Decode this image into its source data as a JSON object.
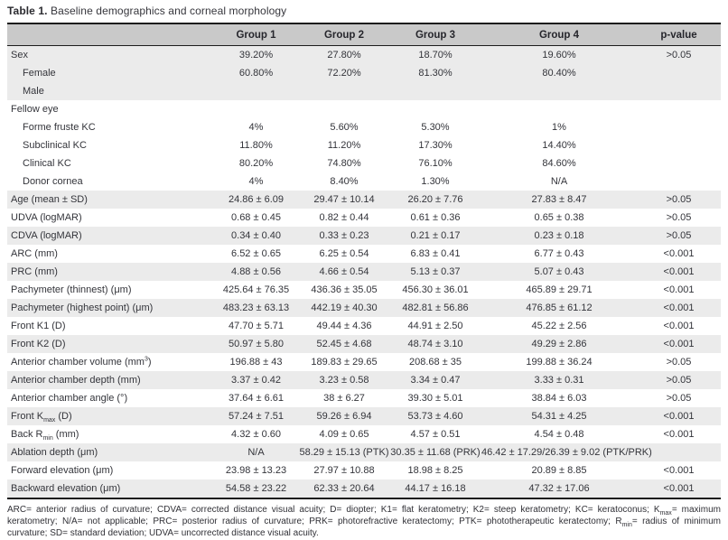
{
  "title": {
    "bold": "Table 1.",
    "rest": " Baseline demographics and corneal morphology"
  },
  "colors": {
    "header_bg": "#c9c9c9",
    "row_shade": "#ebebeb",
    "text": "#33343a",
    "border": "#1c1c1c"
  },
  "table": {
    "columns": [
      "",
      "Group 1",
      "Group 2",
      "Group 3",
      "Group 4",
      "p-value"
    ],
    "rows": [
      {
        "label_parts": [
          {
            "t": "Sex"
          }
        ],
        "indent": false,
        "shade": "gray",
        "values": [
          "39.20%",
          "27.80%",
          "18.70%",
          "19.60%",
          ">0.05"
        ]
      },
      {
        "label_parts": [
          {
            "t": "Female"
          }
        ],
        "indent": true,
        "shade": "gray",
        "values": [
          "60.80%",
          "72.20%",
          "81.30%",
          "80.40%",
          ""
        ]
      },
      {
        "label_parts": [
          {
            "t": "Male"
          }
        ],
        "indent": true,
        "shade": "gray",
        "values": [
          "",
          "",
          "",
          "",
          ""
        ]
      },
      {
        "label_parts": [
          {
            "t": "Fellow eye"
          }
        ],
        "indent": false,
        "shade": "white",
        "values": [
          "",
          "",
          "",
          "",
          ""
        ]
      },
      {
        "label_parts": [
          {
            "t": "Forme fruste KC"
          }
        ],
        "indent": true,
        "shade": "white",
        "values": [
          "4%",
          "5.60%",
          "5.30%",
          "1%",
          ""
        ]
      },
      {
        "label_parts": [
          {
            "t": "Subclinical KC"
          }
        ],
        "indent": true,
        "shade": "white",
        "values": [
          "11.80%",
          "11.20%",
          "17.30%",
          "14.40%",
          ""
        ]
      },
      {
        "label_parts": [
          {
            "t": "Clinical KC"
          }
        ],
        "indent": true,
        "shade": "white",
        "values": [
          "80.20%",
          "74.80%",
          "76.10%",
          "84.60%",
          ""
        ]
      },
      {
        "label_parts": [
          {
            "t": "Donor cornea"
          }
        ],
        "indent": true,
        "shade": "white",
        "values": [
          "4%",
          "8.40%",
          "1.30%",
          "N/A",
          ""
        ]
      },
      {
        "label_parts": [
          {
            "t": "Age (mean ± SD)"
          }
        ],
        "indent": false,
        "shade": "gray",
        "values": [
          "24.86 ± 6.09",
          "29.47 ± 10.14",
          "26.20 ± 7.76",
          "27.83 ± 8.47",
          ">0.05"
        ]
      },
      {
        "label_parts": [
          {
            "t": "UDVA (logMAR)"
          }
        ],
        "indent": false,
        "shade": "white",
        "values": [
          "0.68 ± 0.45",
          "0.82 ± 0.44",
          "0.61 ± 0.36",
          "0.65 ± 0.38",
          ">0.05"
        ]
      },
      {
        "label_parts": [
          {
            "t": "CDVA (logMAR)"
          }
        ],
        "indent": false,
        "shade": "gray",
        "values": [
          "0.34 ± 0.40",
          "0.33 ± 0.23",
          "0.21 ± 0.17",
          "0.23 ± 0.18",
          ">0.05"
        ]
      },
      {
        "label_parts": [
          {
            "t": "ARC (mm)"
          }
        ],
        "indent": false,
        "shade": "white",
        "values": [
          "6.52 ± 0.65",
          "6.25 ± 0.54",
          "6.83 ± 0.41",
          "6.77 ± 0.43",
          "<0.001"
        ]
      },
      {
        "label_parts": [
          {
            "t": "PRC (mm)"
          }
        ],
        "indent": false,
        "shade": "gray",
        "values": [
          "4.88 ± 0.56",
          "4.66 ± 0.54",
          "5.13 ± 0.37",
          "5.07 ± 0.43",
          "<0.001"
        ]
      },
      {
        "label_parts": [
          {
            "t": "Pachymeter (thinnest) (μm)"
          }
        ],
        "indent": false,
        "shade": "white",
        "values": [
          "425.64 ± 76.35",
          "436.36 ± 35.05",
          "456.30 ± 36.01",
          "465.89 ± 29.71",
          "<0.001"
        ]
      },
      {
        "label_parts": [
          {
            "t": "Pachymeter (highest point) (μm)"
          }
        ],
        "indent": false,
        "shade": "gray",
        "values": [
          "483.23 ± 63.13",
          "442.19 ± 40.30",
          "482.81 ± 56.86",
          "476.85 ± 61.12",
          "<0.001"
        ]
      },
      {
        "label_parts": [
          {
            "t": "Front K1 (D)"
          }
        ],
        "indent": false,
        "shade": "white",
        "values": [
          "47.70 ± 5.71",
          "49.44 ± 4.36",
          "44.91 ± 2.50",
          "45.22 ± 2.56",
          "<0.001"
        ]
      },
      {
        "label_parts": [
          {
            "t": "Front K2 (D)"
          }
        ],
        "indent": false,
        "shade": "gray",
        "values": [
          "50.97 ± 5.80",
          "52.45 ± 4.68",
          "48.74 ± 3.10",
          "49.29 ± 2.86",
          "<0.001"
        ]
      },
      {
        "label_parts": [
          {
            "t": "Anterior chamber volume (mm"
          },
          {
            "t": "3",
            "style": "sup"
          },
          {
            "t": ")"
          }
        ],
        "indent": false,
        "shade": "white",
        "values": [
          "196.88 ± 43",
          "189.83 ± 29.65",
          "208.68 ± 35",
          "199.88 ± 36.24",
          ">0.05"
        ]
      },
      {
        "label_parts": [
          {
            "t": "Anterior chamber depth (mm)"
          }
        ],
        "indent": false,
        "shade": "gray",
        "values": [
          "3.37 ± 0.42",
          "3.23 ± 0.58",
          "3.34 ± 0.47",
          "3.33 ± 0.31",
          ">0.05"
        ]
      },
      {
        "label_parts": [
          {
            "t": "Anterior chamber angle (°)"
          }
        ],
        "indent": false,
        "shade": "white",
        "values": [
          "37.64 ± 6.61",
          "38 ± 6.27",
          "39.30 ± 5.01",
          "38.84 ± 6.03",
          ">0.05"
        ]
      },
      {
        "label_parts": [
          {
            "t": "Front K"
          },
          {
            "t": "max",
            "style": "sub"
          },
          {
            "t": " (D)"
          }
        ],
        "indent": false,
        "shade": "gray",
        "values": [
          "57.24 ± 7.51",
          "59.26 ± 6.94",
          "53.73 ± 4.60",
          "54.31 ± 4.25",
          "<0.001"
        ]
      },
      {
        "label_parts": [
          {
            "t": "Back R"
          },
          {
            "t": "min",
            "style": "sub"
          },
          {
            "t": " (mm)"
          }
        ],
        "indent": false,
        "shade": "white",
        "values": [
          "4.32 ± 0.60",
          "4.09 ± 0.65",
          "4.57 ± 0.51",
          "4.54 ± 0.48",
          "<0.001"
        ]
      },
      {
        "label_parts": [
          {
            "t": "Ablation depth (μm)"
          }
        ],
        "indent": false,
        "shade": "gray",
        "values": [
          "N/A",
          "58.29 ± 15.13 (PTK)",
          "30.35 ± 11.68 (PRK)",
          "46.42 ± 17.29/26.39 ± 9.02 (PTK/PRK)",
          ""
        ]
      },
      {
        "label_parts": [
          {
            "t": "Forward elevation (μm)"
          }
        ],
        "indent": false,
        "shade": "white",
        "values": [
          "23.98 ± 13.23",
          "27.97 ± 10.88",
          "18.98 ± 8.25",
          "20.89 ± 8.85",
          "<0.001"
        ]
      },
      {
        "label_parts": [
          {
            "t": "Backward elevation (μm)"
          }
        ],
        "indent": false,
        "shade": "gray",
        "values": [
          "54.58 ± 23.22",
          "62.33 ± 20.64",
          "44.17 ± 16.18",
          "47.32 ± 17.06",
          "<0.001"
        ]
      }
    ]
  },
  "footnote_parts": [
    {
      "t": "ARC= anterior radius of curvature; CDVA= corrected distance visual acuity; D= diopter; K1= flat keratometry; K2= steep keratometry; KC= keratoconus; K"
    },
    {
      "t": "max",
      "style": "sub"
    },
    {
      "t": "= maximum keratometry; N/A= not applicable; PRC= posterior radius of curvature; PRK= photorefractive keratectomy; PTK= phototherapeutic keratectomy; R"
    },
    {
      "t": "min",
      "style": "sub"
    },
    {
      "t": "= radius of minimum curvature; SD= standard deviation; UDVA= uncorrected distance visual acuity."
    }
  ]
}
